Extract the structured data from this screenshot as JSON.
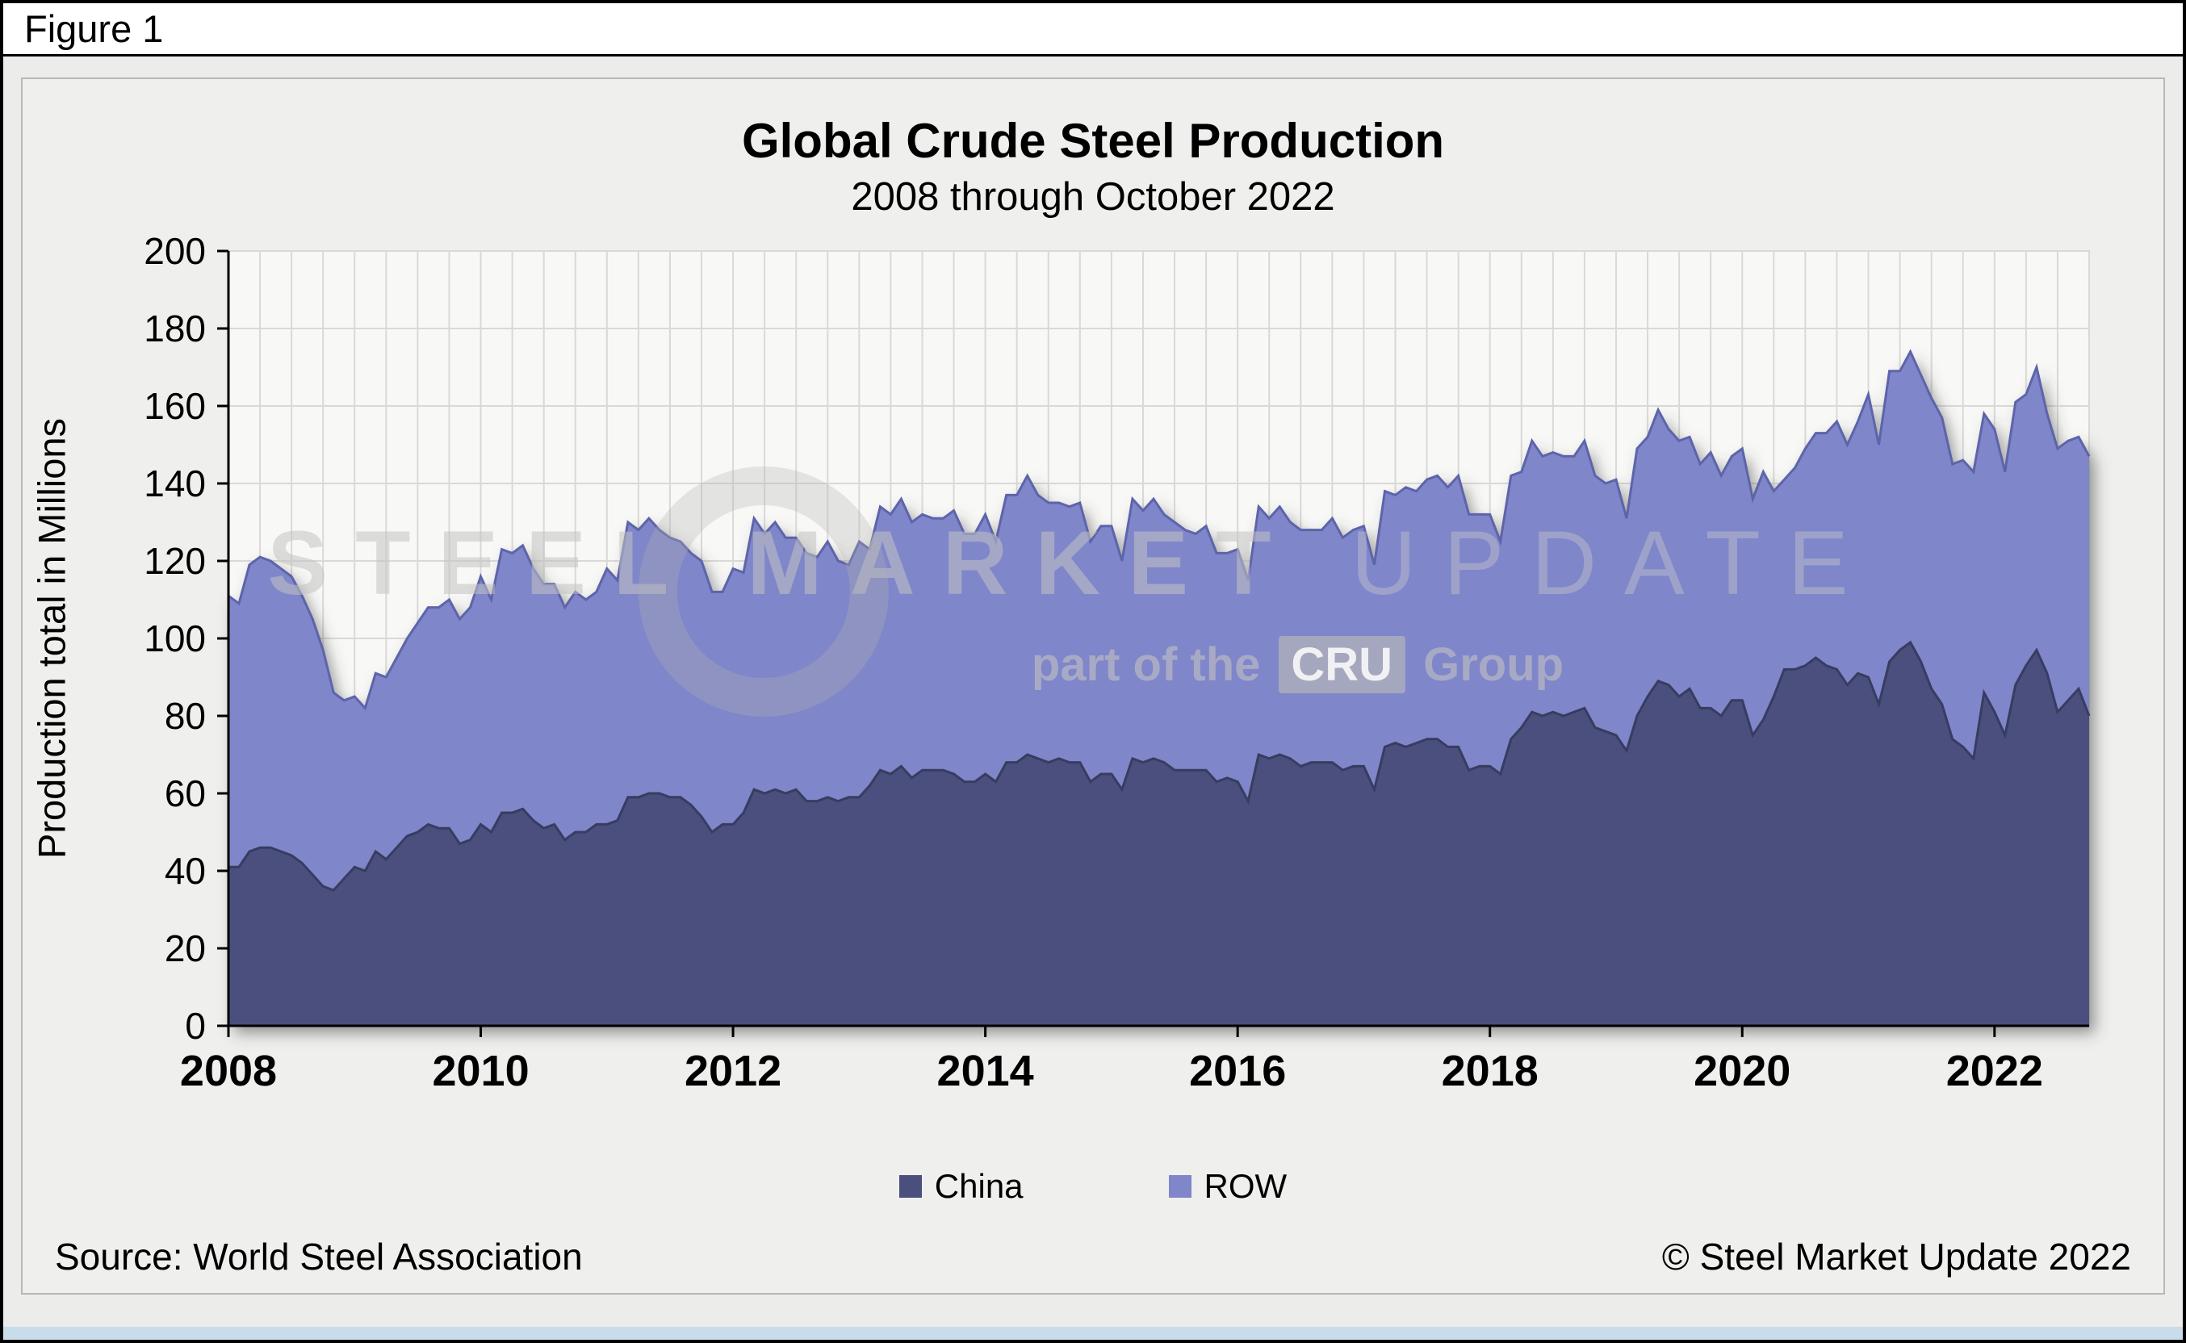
{
  "figure_label": "Figure 1",
  "chart": {
    "title": "Global Crude Steel Production",
    "subtitle": "2008 through October 2022"
  },
  "legend": {
    "items": [
      {
        "label": "China",
        "color": "#4a4f7e"
      },
      {
        "label": "ROW",
        "color": "#7f86c9"
      }
    ]
  },
  "footer": {
    "source": "Source: World Steel Association",
    "copyright": "© Steel Market Update 2022"
  },
  "watermark": {
    "line1_strong": "STEEL MARKET",
    "line1_light": "UPDATE",
    "line2_pre": "part of the",
    "line2_cru": "CRU",
    "line2_post": "Group"
  },
  "chart_data": {
    "type": "area",
    "stacked": true,
    "title": "Global Crude Steel Production",
    "subtitle": "2008 through October 2022",
    "xlabel": "",
    "ylabel": "Production total in Millions",
    "ylim": [
      0,
      200
    ],
    "ytick_step": 20,
    "start_year": 2008,
    "x_months": {
      "start": "2008-01",
      "end": "2022-10",
      "count": 178
    },
    "xticks": [
      2008,
      2010,
      2012,
      2014,
      2016,
      2018,
      2020,
      2022
    ],
    "grid": true,
    "legend_position": "bottom",
    "plot_bg": "#f8f8f6",
    "grid_color": "#d9d9d7",
    "series": [
      {
        "name": "China",
        "color": "#4a4f7e",
        "edge_color": "#383c61",
        "values": [
          41,
          41,
          45,
          46,
          46,
          45,
          44,
          42,
          39,
          36,
          35,
          38,
          41,
          40,
          45,
          43,
          46,
          49,
          50,
          52,
          51,
          51,
          47,
          48,
          52,
          50,
          55,
          55,
          56,
          53,
          51,
          52,
          48,
          50,
          50,
          52,
          52,
          53,
          59,
          59,
          60,
          60,
          59,
          59,
          57,
          54,
          50,
          52,
          52,
          55,
          61,
          60,
          61,
          60,
          61,
          58,
          58,
          59,
          58,
          59,
          59,
          62,
          66,
          65,
          67,
          64,
          66,
          66,
          66,
          65,
          63,
          63,
          65,
          63,
          68,
          68,
          70,
          69,
          68,
          69,
          68,
          68,
          63,
          65,
          65,
          61,
          69,
          68,
          69,
          68,
          66,
          66,
          66,
          66,
          63,
          64,
          63,
          58,
          70,
          69,
          70,
          69,
          67,
          68,
          68,
          68,
          66,
          67,
          67,
          61,
          72,
          73,
          72,
          73,
          74,
          74,
          72,
          72,
          66,
          67,
          67,
          65,
          74,
          77,
          81,
          80,
          81,
          80,
          81,
          82,
          77,
          76,
          75,
          71,
          80,
          85,
          89,
          88,
          85,
          87,
          82,
          82,
          80,
          84,
          84,
          75,
          79,
          85,
          92,
          92,
          93,
          95,
          93,
          92,
          88,
          91,
          90,
          83,
          94,
          97,
          99,
          94,
          87,
          83,
          74,
          72,
          69,
          86,
          81,
          75,
          88,
          93,
          97,
          91,
          81,
          84,
          87,
          80
        ]
      },
      {
        "name": "ROW",
        "color": "#7f86c9",
        "edge_color": "#5d64aa",
        "values": [
          70,
          68,
          74,
          75,
          74,
          73,
          72,
          69,
          66,
          61,
          51,
          46,
          44,
          42,
          46,
          47,
          49,
          51,
          54,
          56,
          57,
          59,
          58,
          60,
          64,
          60,
          68,
          67,
          68,
          65,
          63,
          62,
          60,
          62,
          60,
          60,
          66,
          62,
          71,
          69,
          71,
          68,
          67,
          66,
          65,
          66,
          62,
          60,
          66,
          62,
          70,
          67,
          69,
          66,
          65,
          64,
          63,
          66,
          62,
          60,
          66,
          61,
          68,
          67,
          69,
          66,
          66,
          65,
          65,
          68,
          64,
          64,
          67,
          62,
          69,
          69,
          72,
          68,
          67,
          66,
          66,
          67,
          62,
          64,
          64,
          59,
          67,
          65,
          67,
          64,
          64,
          62,
          61,
          63,
          59,
          58,
          60,
          57,
          64,
          62,
          64,
          61,
          61,
          60,
          60,
          63,
          60,
          61,
          62,
          58,
          66,
          64,
          67,
          65,
          67,
          68,
          67,
          70,
          66,
          65,
          65,
          60,
          68,
          66,
          70,
          67,
          67,
          67,
          66,
          69,
          65,
          64,
          66,
          60,
          69,
          67,
          70,
          66,
          66,
          65,
          63,
          66,
          62,
          63,
          65,
          61,
          64,
          53,
          49,
          52,
          56,
          58,
          60,
          64,
          62,
          65,
          73,
          67,
          75,
          72,
          75,
          74,
          75,
          74,
          71,
          74,
          74,
          72,
          73,
          68,
          73,
          70,
          73,
          67,
          68,
          67,
          65,
          67
        ]
      }
    ]
  }
}
